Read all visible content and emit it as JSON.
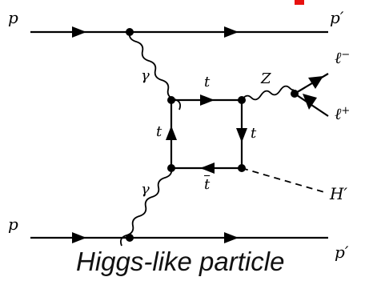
{
  "labels": {
    "p_in_top": "p",
    "p_out_top": "p",
    "p_out_top_prime": "′",
    "gamma_top": "γ",
    "t_top": "t",
    "z_boson": "Z",
    "lepton_minus": "ℓ",
    "lepton_minus_sup": "−",
    "lepton_plus": "ℓ",
    "lepton_plus_sup": "+",
    "t_left": "t",
    "t_right": "t",
    "tbar_bottom": "t",
    "gamma_bottom": "γ",
    "higgs": "H",
    "higgs_prime": "′",
    "p_in_bottom": "p",
    "p_out_bottom": "p",
    "p_out_bottom_prime": "′"
  },
  "caption": "Higgs-like particle",
  "colors": {
    "line": "#000000",
    "accent_mark": "#e8110f"
  }
}
